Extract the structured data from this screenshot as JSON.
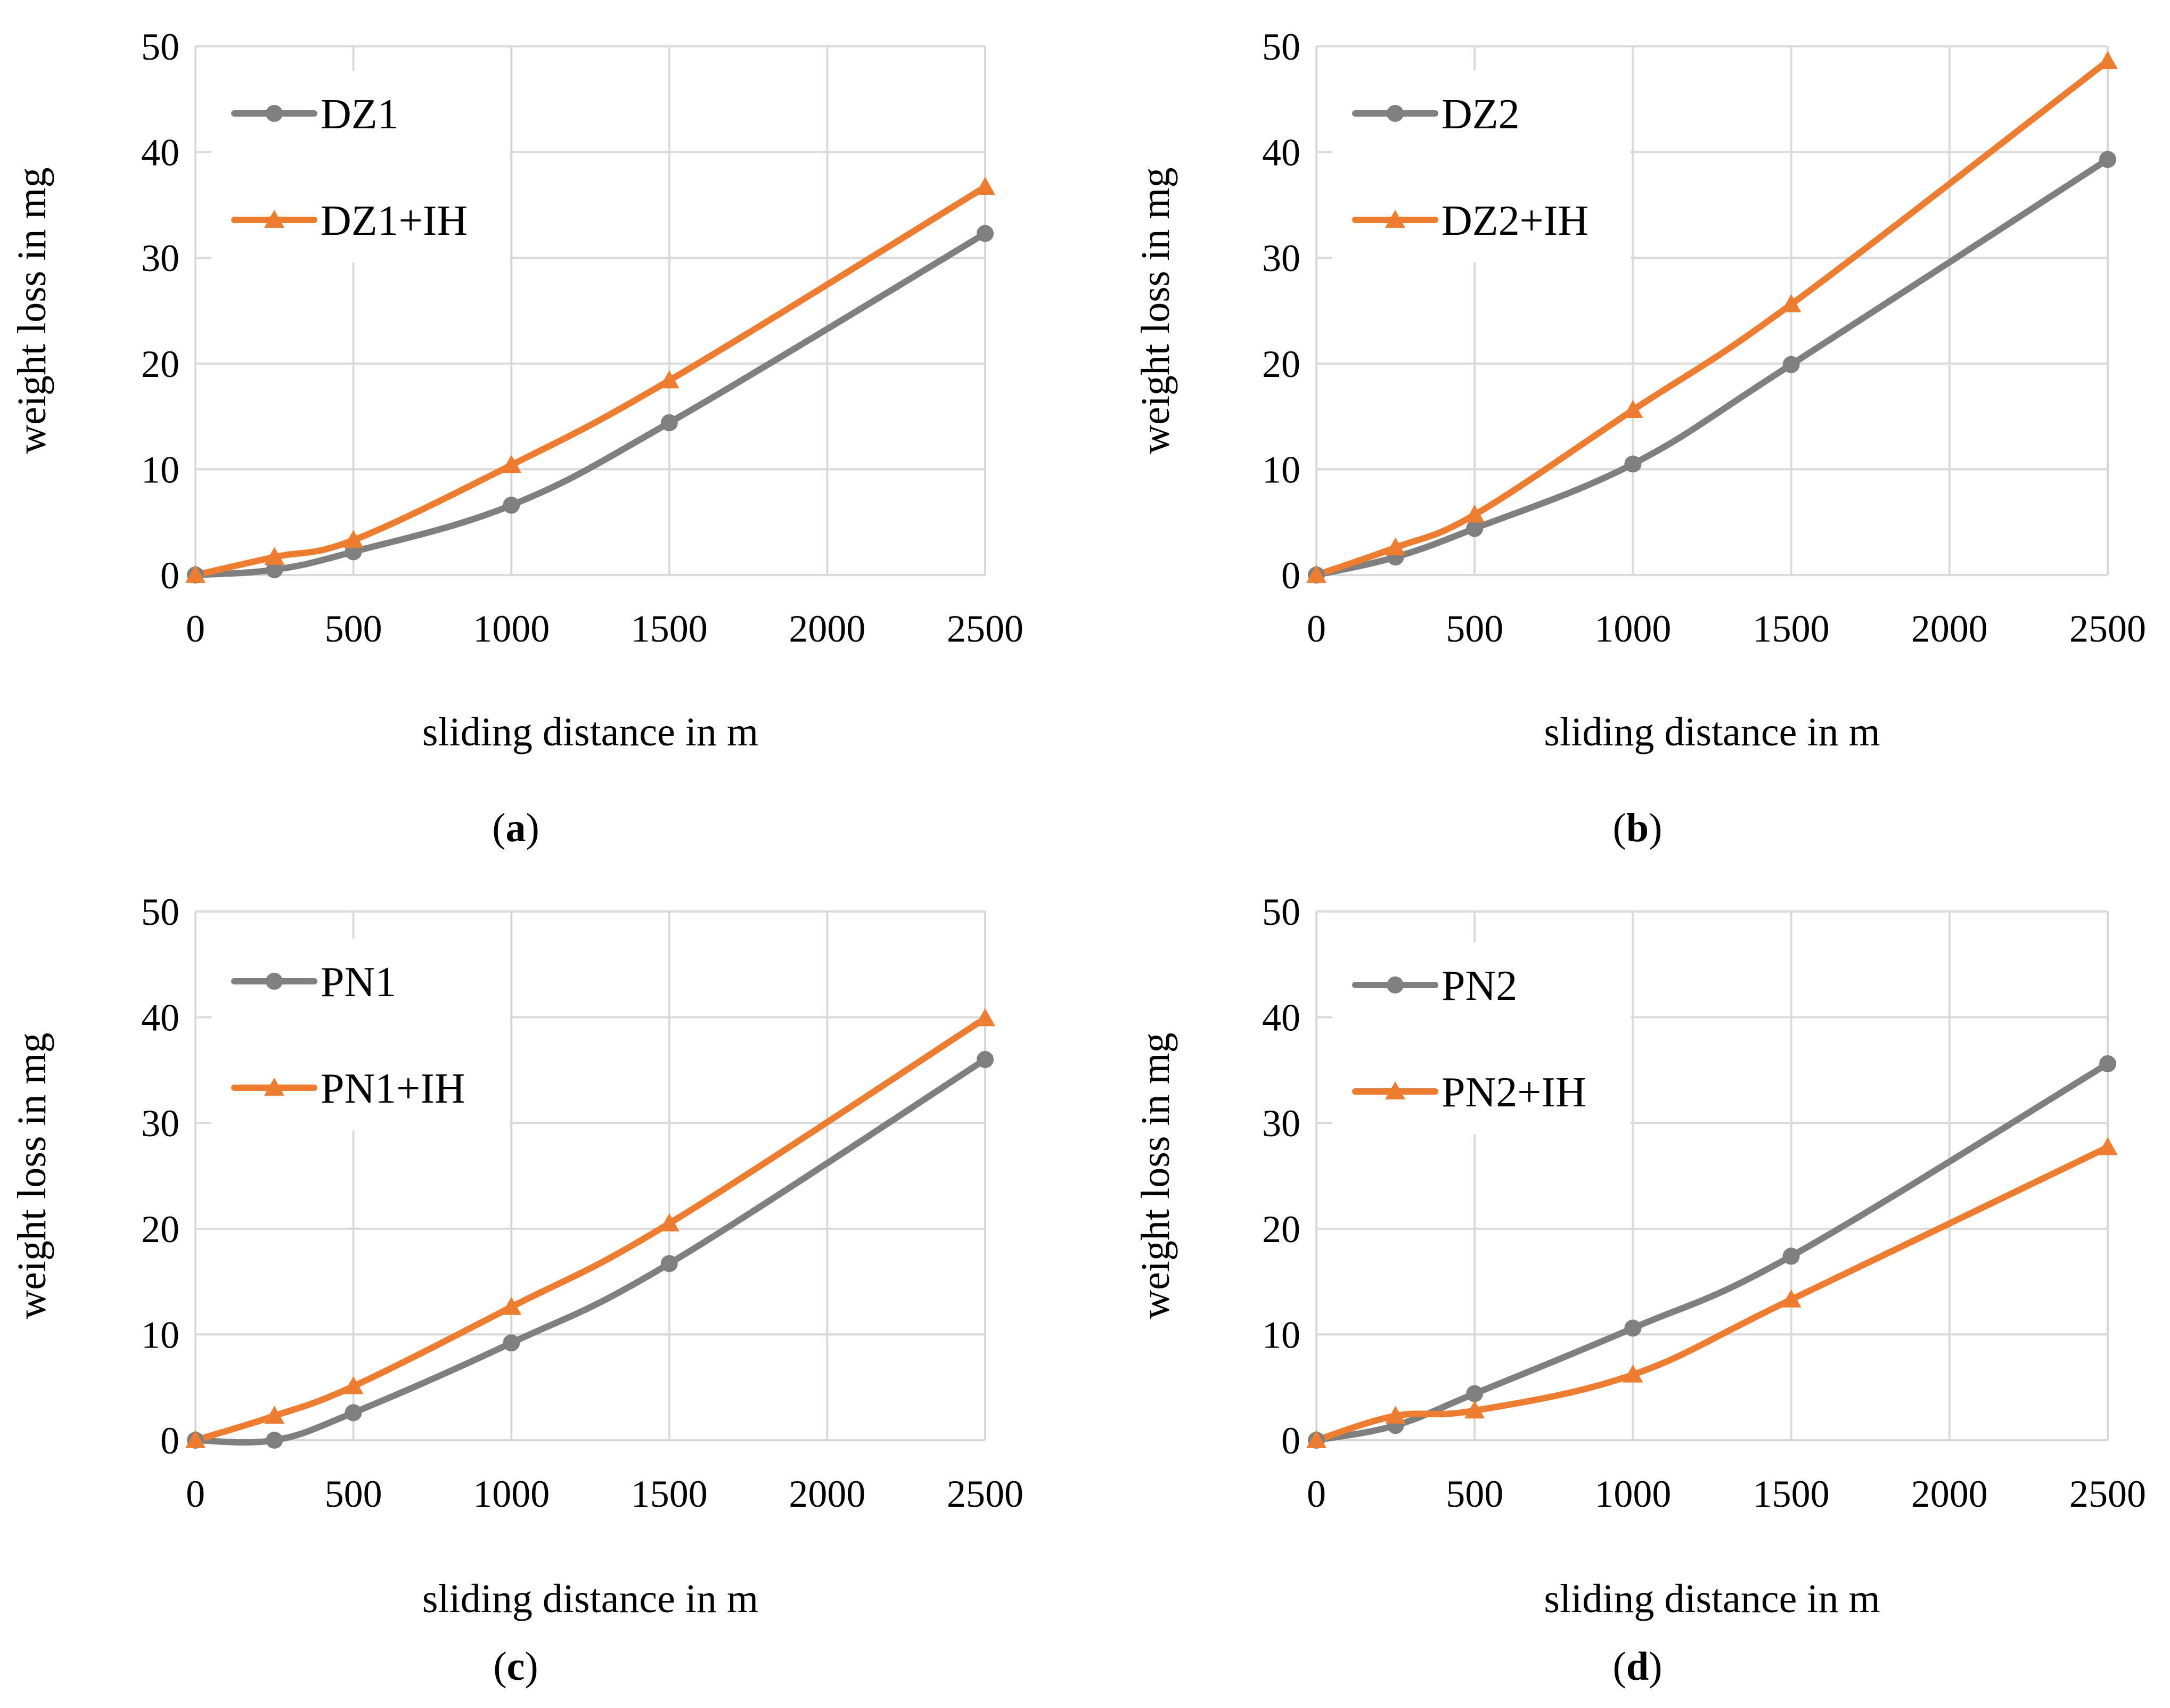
{
  "colors": {
    "series_gray": "#7f7f7f",
    "series_orange": "#ed7d31",
    "grid": "#d9d9d9",
    "text": "#000000"
  },
  "chart_data": [
    {
      "type": "line",
      "panel_label": "a",
      "xlabel": "sliding distance in m",
      "ylabel": "weight loss in mg",
      "xlim": [
        0,
        2500
      ],
      "ylim": [
        0,
        50
      ],
      "xticks": [
        0,
        500,
        1000,
        1500,
        2000,
        2500
      ],
      "yticks": [
        0,
        10,
        20,
        30,
        40,
        50
      ],
      "legend_position": "top-left",
      "x": [
        0,
        250,
        500,
        1000,
        1500,
        2500
      ],
      "series": [
        {
          "name": "DZ1",
          "marker": "circle",
          "color": "#7f7f7f",
          "values": [
            0,
            0.5,
            2.2,
            6.6,
            14.4,
            32.3
          ]
        },
        {
          "name": "DZ1+IH",
          "marker": "triangle",
          "color": "#ed7d31",
          "values": [
            0,
            1.7,
            3.3,
            10.4,
            18.4,
            36.7
          ]
        }
      ]
    },
    {
      "type": "line",
      "panel_label": "b",
      "xlabel": "sliding distance in m",
      "ylabel": "weight loss in mg",
      "xlim": [
        0,
        2500
      ],
      "ylim": [
        0,
        50
      ],
      "xticks": [
        0,
        500,
        1000,
        1500,
        2000,
        2500
      ],
      "yticks": [
        0,
        10,
        20,
        30,
        40,
        50
      ],
      "legend_position": "top-left",
      "x": [
        0,
        250,
        500,
        1000,
        1500,
        2500
      ],
      "series": [
        {
          "name": "DZ2",
          "marker": "circle",
          "color": "#7f7f7f",
          "values": [
            0,
            1.7,
            4.4,
            10.5,
            19.9,
            39.3
          ]
        },
        {
          "name": "DZ2+IH",
          "marker": "triangle",
          "color": "#ed7d31",
          "values": [
            0,
            2.6,
            5.7,
            15.6,
            25.6,
            48.6
          ]
        }
      ]
    },
    {
      "type": "line",
      "panel_label": "c",
      "xlabel": "sliding distance in m",
      "ylabel": "weight loss in mg",
      "xlim": [
        0,
        2500
      ],
      "ylim": [
        0,
        50
      ],
      "xticks": [
        0,
        500,
        1000,
        1500,
        2000,
        2500
      ],
      "yticks": [
        0,
        10,
        20,
        30,
        40,
        50
      ],
      "legend_position": "top-left",
      "x": [
        0,
        250,
        500,
        1000,
        1500,
        2500
      ],
      "series": [
        {
          "name": "PN1",
          "marker": "circle",
          "color": "#7f7f7f",
          "values": [
            0,
            0,
            2.6,
            9.2,
            16.7,
            36.0
          ]
        },
        {
          "name": "PN1+IH",
          "marker": "triangle",
          "color": "#ed7d31",
          "values": [
            0,
            2.3,
            5.1,
            12.6,
            20.5,
            39.9
          ]
        }
      ]
    },
    {
      "type": "line",
      "panel_label": "d",
      "xlabel": "sliding distance in m",
      "ylabel": "weight loss in mg",
      "xlim": [
        0,
        2500
      ],
      "ylim": [
        0,
        50
      ],
      "xticks": [
        0,
        500,
        1000,
        1500,
        2000,
        2500
      ],
      "yticks": [
        0,
        10,
        20,
        30,
        40,
        50
      ],
      "legend_position": "top-left",
      "x": [
        0,
        250,
        500,
        1000,
        1500,
        2500
      ],
      "series": [
        {
          "name": "PN2",
          "marker": "circle",
          "color": "#7f7f7f",
          "values": [
            0,
            1.4,
            4.4,
            10.6,
            17.4,
            35.6
          ]
        },
        {
          "name": "PN2+IH",
          "marker": "triangle",
          "color": "#ed7d31",
          "values": [
            0,
            2.3,
            2.8,
            6.2,
            13.3,
            27.7
          ]
        }
      ]
    }
  ]
}
